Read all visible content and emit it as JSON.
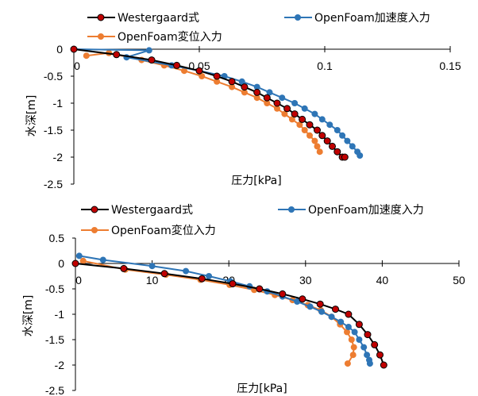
{
  "chart_data": [
    {
      "type": "line",
      "xlabel": "圧力[kPa]",
      "ylabel": "水深[m]",
      "xlim": [
        0,
        0.15
      ],
      "ylim": [
        -2.5,
        0
      ],
      "x_ticks": [
        "0",
        "0.05",
        "0.1",
        "0.15"
      ],
      "y_ticks": [
        "0",
        "-0.5",
        "-1",
        "-1.5",
        "-2",
        "-2.5"
      ],
      "x_tick_values": [
        0,
        0.05,
        0.1,
        0.15
      ],
      "y_tick_values": [
        0,
        -0.5,
        -1,
        -1.5,
        -2,
        -2.5
      ],
      "legend_placement": "top",
      "series": [
        {
          "name": "Westergaard式",
          "color": "#000000",
          "marker_fill": "#c00000",
          "x": [
            0,
            0.017,
            0.031,
            0.041,
            0.05,
            0.057,
            0.063,
            0.068,
            0.073,
            0.077,
            0.081,
            0.085,
            0.088,
            0.091,
            0.094,
            0.097,
            0.099,
            0.101,
            0.103,
            0.105,
            0.107,
            0.108
          ],
          "y": [
            0,
            -0.1,
            -0.2,
            -0.3,
            -0.4,
            -0.5,
            -0.6,
            -0.7,
            -0.8,
            -0.9,
            -1.0,
            -1.1,
            -1.2,
            -1.3,
            -1.4,
            -1.5,
            -1.6,
            -1.7,
            -1.8,
            -1.9,
            -2.0,
            -2.0
          ]
        },
        {
          "name": "OpenFoam加速度入力",
          "color": "#2e75b6",
          "marker_fill": "#2e75b6",
          "x": [
            0,
            0.03,
            0.021,
            0.039,
            0.05,
            0.06,
            0.067,
            0.073,
            0.078,
            0.083,
            0.088,
            0.092,
            0.096,
            0.099,
            0.102,
            0.105,
            0.107,
            0.109,
            0.111,
            0.113,
            0.114
          ],
          "y": [
            0,
            -0.02,
            -0.15,
            -0.3,
            -0.4,
            -0.5,
            -0.6,
            -0.7,
            -0.8,
            -0.9,
            -1.0,
            -1.1,
            -1.2,
            -1.3,
            -1.4,
            -1.5,
            -1.6,
            -1.7,
            -1.8,
            -1.9,
            -1.97
          ]
        },
        {
          "name": "OpenFoam変位入力",
          "color": "#ed7d31",
          "marker_fill": "#ed7d31",
          "x": [
            0.005,
            0.014,
            0.027,
            0.036,
            0.044,
            0.051,
            0.057,
            0.063,
            0.068,
            0.073,
            0.077,
            0.081,
            0.084,
            0.087,
            0.09,
            0.092,
            0.094,
            0.096,
            0.097,
            0.098
          ],
          "y": [
            -0.12,
            -0.07,
            -0.2,
            -0.3,
            -0.4,
            -0.5,
            -0.6,
            -0.7,
            -0.8,
            -0.9,
            -1.0,
            -1.1,
            -1.2,
            -1.3,
            -1.4,
            -1.5,
            -1.6,
            -1.7,
            -1.8,
            -1.9
          ]
        }
      ]
    },
    {
      "type": "line",
      "xlabel": "圧力[kPa]",
      "ylabel": "水深[m]",
      "xlim": [
        0,
        50
      ],
      "ylim": [
        -2.5,
        0.5
      ],
      "x_ticks": [
        "0",
        "10",
        "20",
        "30",
        "40",
        "50"
      ],
      "y_ticks": [
        "0.5",
        "0",
        "-0.5",
        "-1",
        "-1.5",
        "-2",
        "-2.5"
      ],
      "x_tick_values": [
        0,
        10,
        20,
        30,
        40,
        50
      ],
      "y_tick_values": [
        0.5,
        0,
        -0.5,
        -1,
        -1.5,
        -2,
        -2.5
      ],
      "legend_placement": "top",
      "series": [
        {
          "name": "Westergaard式",
          "color": "#000000",
          "marker_fill": "#c00000",
          "x": [
            0,
            6.3,
            11.6,
            16.5,
            20.5,
            24.0,
            27.0,
            29.6,
            31.9,
            33.9,
            35.6,
            37.0,
            38.1,
            39.0,
            39.7,
            40.2
          ],
          "y": [
            0,
            -0.1,
            -0.2,
            -0.3,
            -0.4,
            -0.5,
            -0.6,
            -0.7,
            -0.8,
            -0.9,
            -1.0,
            -1.2,
            -1.4,
            -1.6,
            -1.8,
            -2.0
          ]
        },
        {
          "name": "OpenFoam加速度入力",
          "color": "#2e75b6",
          "marker_fill": "#2e75b6",
          "x": [
            0.5,
            3.6,
            10.0,
            14.4,
            17.4,
            20.2,
            22.7,
            25.0,
            27.0,
            28.9,
            30.6,
            32.1,
            33.4,
            34.6,
            35.6,
            36.4,
            37.0,
            37.6,
            38.0,
            38.3,
            38.4
          ],
          "y": [
            0.15,
            0.07,
            -0.05,
            -0.15,
            -0.25,
            -0.35,
            -0.45,
            -0.55,
            -0.65,
            -0.75,
            -0.85,
            -0.95,
            -1.05,
            -1.15,
            -1.25,
            -1.35,
            -1.5,
            -1.65,
            -1.8,
            -1.9,
            -1.97
          ]
        },
        {
          "name": "OpenFoam変位入力",
          "color": "#ed7d31",
          "marker_fill": "#ed7d31",
          "x": [
            1.0,
            6.5,
            11.8,
            16.3,
            20.1,
            23.3,
            26.0,
            28.3,
            30.3,
            32.0,
            33.4,
            34.5,
            35.4,
            36.0,
            36.3,
            36.2,
            35.5
          ],
          "y": [
            0.05,
            -0.12,
            -0.22,
            -0.32,
            -0.42,
            -0.52,
            -0.62,
            -0.72,
            -0.82,
            -0.92,
            -1.05,
            -1.2,
            -1.35,
            -1.5,
            -1.65,
            -1.8,
            -1.97
          ]
        }
      ]
    }
  ]
}
